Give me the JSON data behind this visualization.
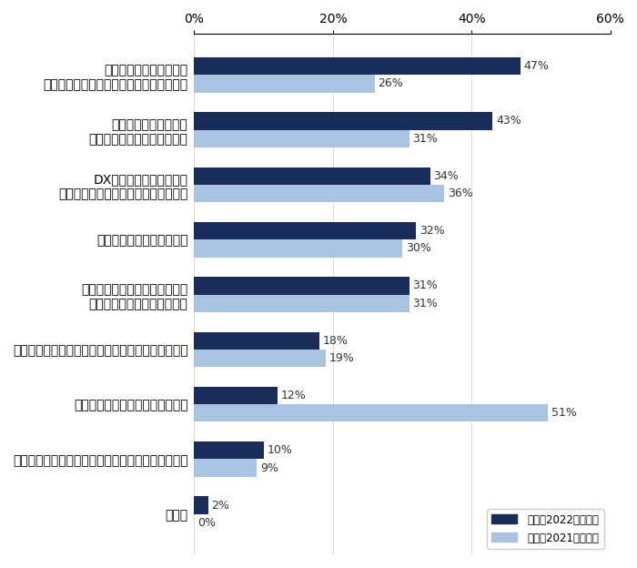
{
  "categories": [
    "若手人材の不足により、\n採用人材の年齢幅を広げざるを得ないため",
    "既存事業拡大に伴う、\n経験者募集が増えているため",
    "DX化を推進するための、\nスペシャリスト募集が増えているため",
    "管理職が不足しているため",
    "業態のシフトチェンジに伴う、\n経験者募集が増えているため",
    "年功序列から成果主義へのシフトが進んでいるため",
    "景気回復の兆しが見えてきたため",
    "事業継承を行うための後継者募集が増えているため",
    "その他"
  ],
  "values_current": [
    47,
    43,
    34,
    32,
    31,
    18,
    12,
    10,
    2
  ],
  "values_prev": [
    26,
    31,
    36,
    30,
    31,
    19,
    51,
    9,
    0
  ],
  "color_current": "#1a2d5a",
  "color_prev": "#a8c4e0",
  "legend_current": "今回（2022年実施）",
  "legend_prev": "前回（2021年実施）",
  "xlim": [
    0,
    60
  ],
  "xticks": [
    0,
    20,
    40,
    60
  ],
  "xticklabels": [
    "0%",
    "20%",
    "40%",
    "60%"
  ],
  "bar_height": 0.32,
  "figsize": [
    7.0,
    6.24
  ],
  "dpi": 100
}
